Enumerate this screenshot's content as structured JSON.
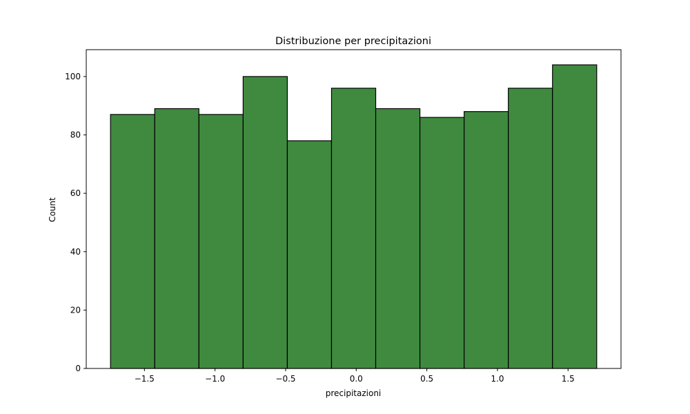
{
  "chart_data": {
    "type": "bar",
    "title": "Distribuzione per precipitazioni",
    "xlabel": "precipitazioni",
    "ylabel": "Count",
    "bin_edges": [
      -1.74,
      -1.427,
      -1.114,
      -0.801,
      -0.488,
      -0.175,
      0.138,
      0.451,
      0.764,
      1.077,
      1.39,
      1.703
    ],
    "values": [
      87,
      89,
      87,
      100,
      78,
      96,
      89,
      86,
      88,
      96,
      104
    ],
    "xlim": [
      -1.912,
      1.875
    ],
    "ylim": [
      0,
      109.2
    ],
    "x_ticks": [
      -1.5,
      -1.0,
      -0.5,
      0.0,
      0.5,
      1.0,
      1.5
    ],
    "x_tick_labels": [
      "−1.5",
      "−1.0",
      "−0.5",
      "0.0",
      "0.5",
      "1.0",
      "1.5"
    ],
    "y_ticks": [
      0,
      20,
      40,
      60,
      80,
      100
    ],
    "y_tick_labels": [
      "0",
      "20",
      "40",
      "60",
      "80",
      "100"
    ],
    "bar_color": "#3f8a3f",
    "edge_color": "#000000",
    "grid": false,
    "legend": "none"
  }
}
